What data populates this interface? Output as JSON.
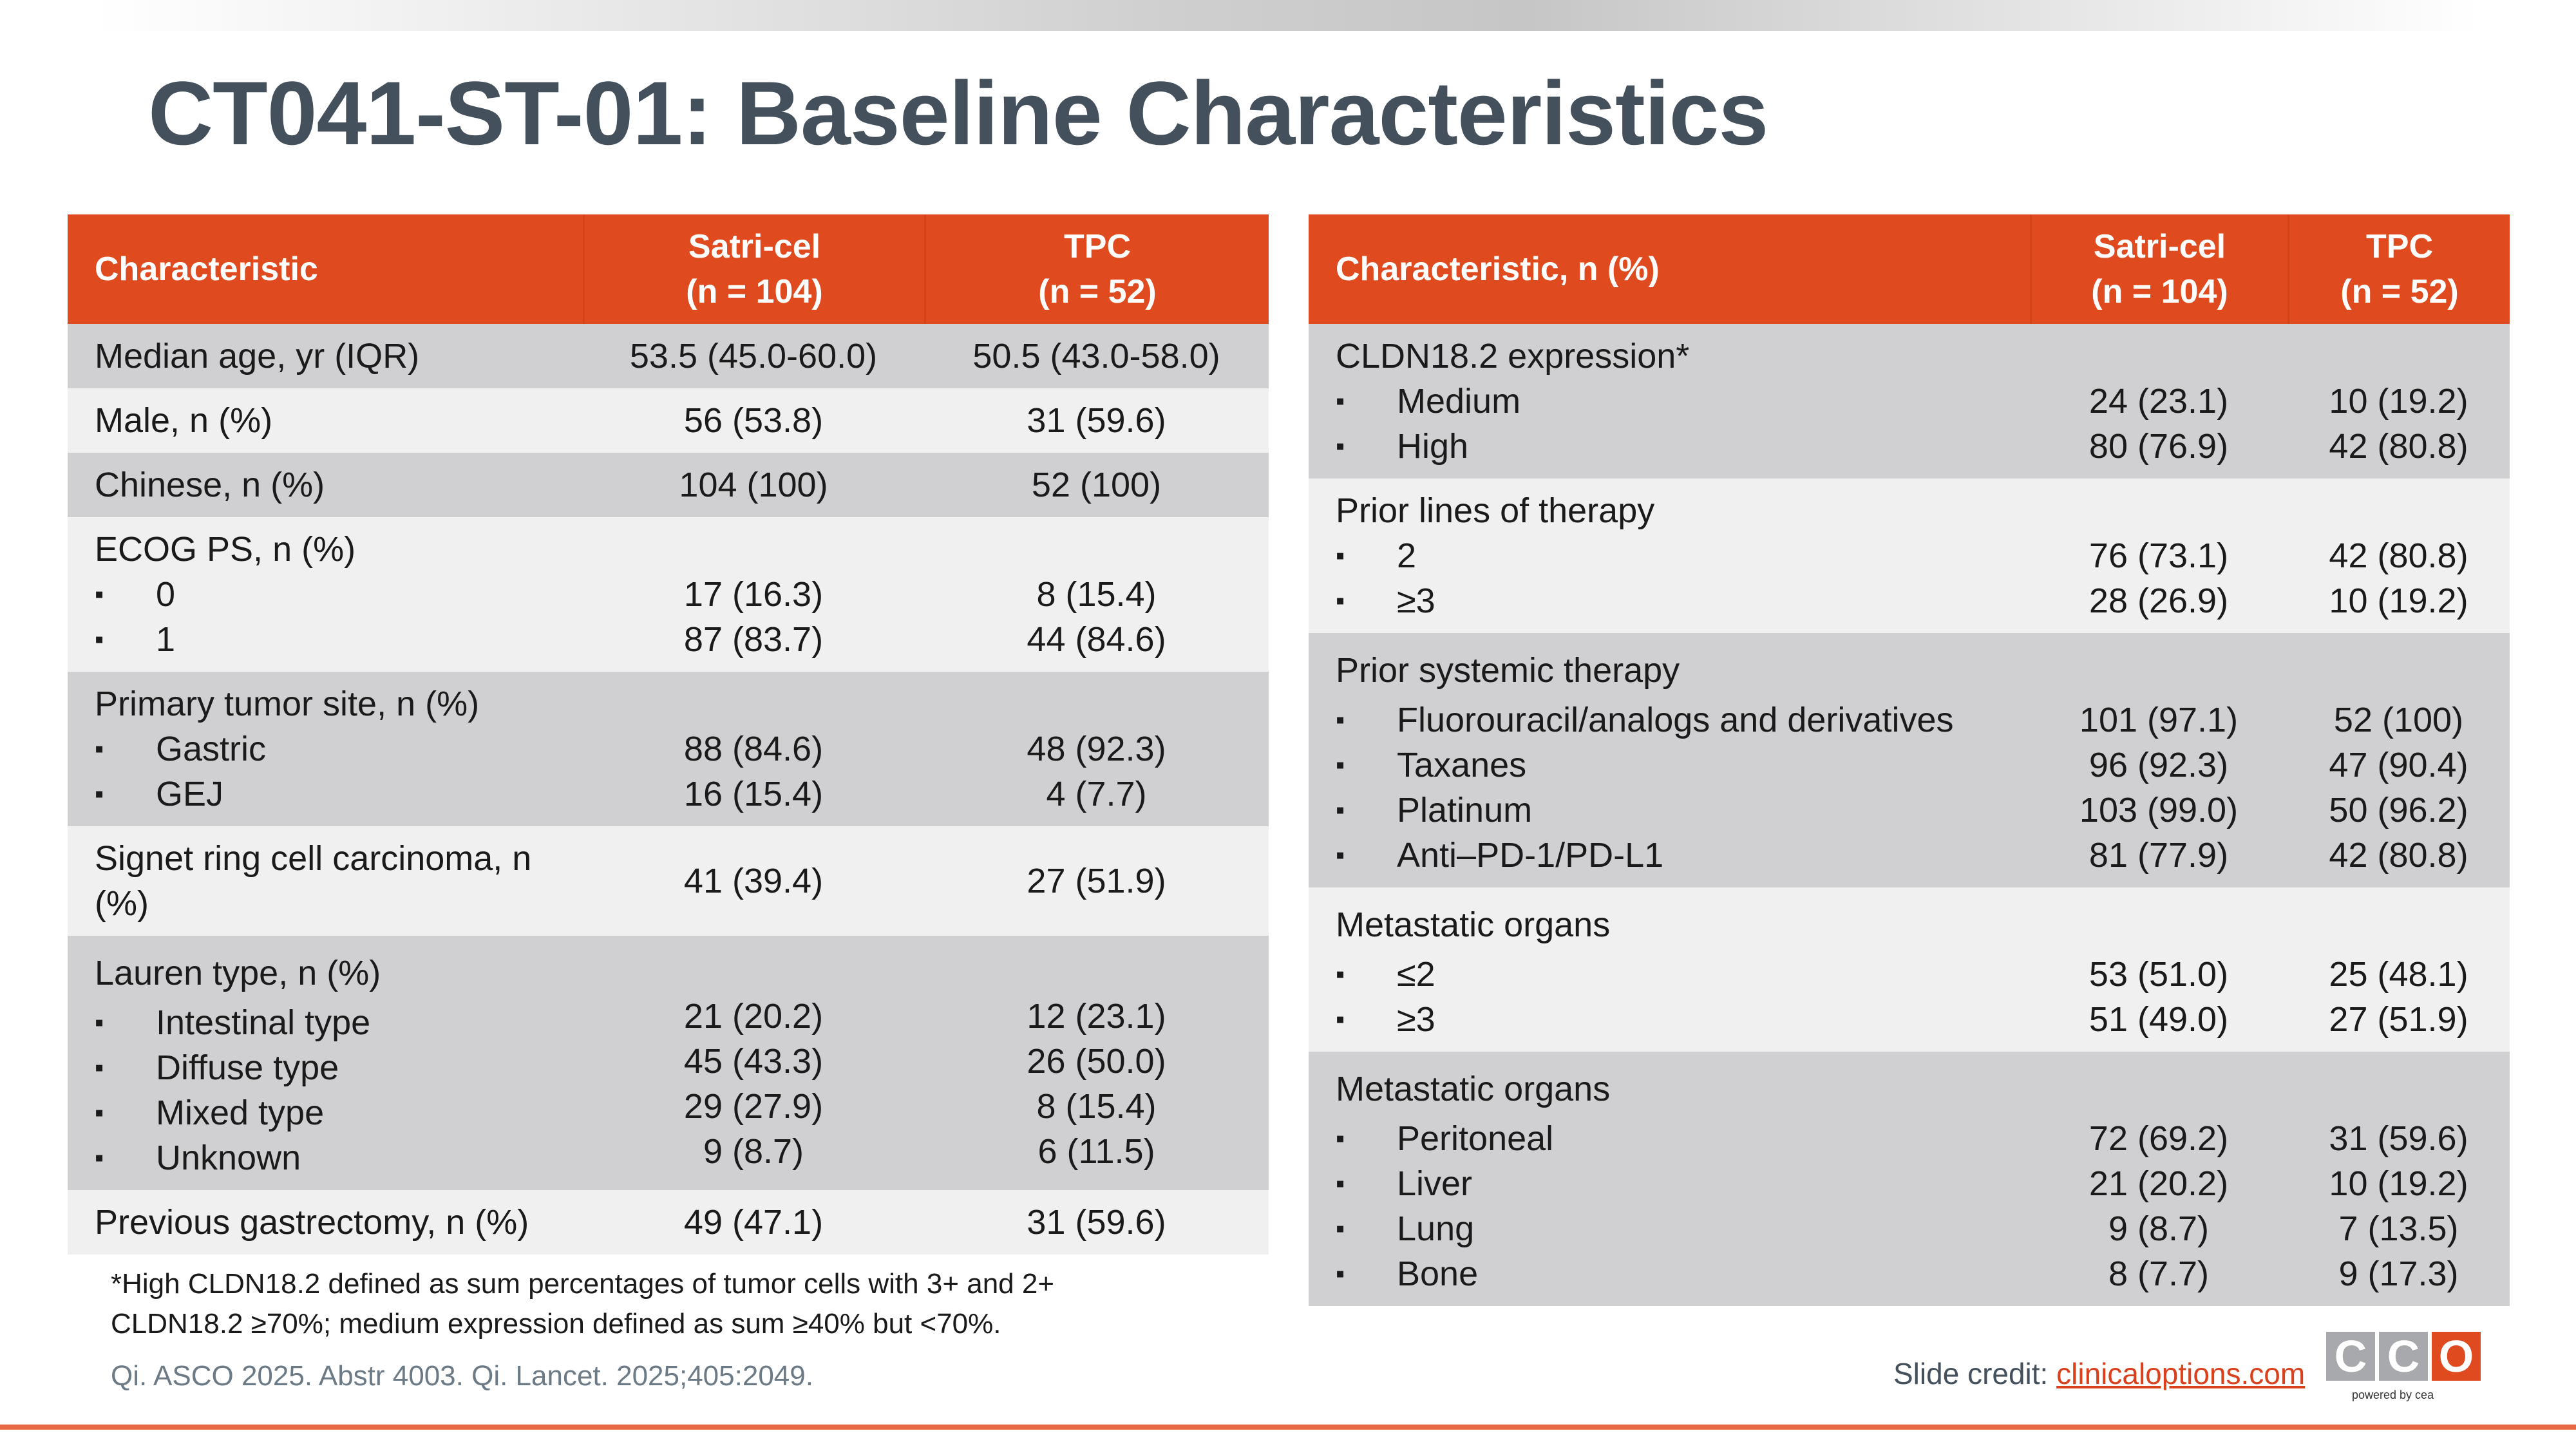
{
  "title": "CT041-ST-01: Baseline Characteristics",
  "left_table": {
    "headers": [
      "Characteristic",
      "Satri-cel\n(n = 104)",
      "TPC\n(n = 52)"
    ],
    "header_lines": {
      "c1": "Characteristic",
      "c2a": "Satri-cel",
      "c2b": "(n = 104)",
      "c3a": "TPC",
      "c3b": "(n = 52)"
    },
    "rows": {
      "age": {
        "label": "Median age, yr (IQR)",
        "satri": "53.5 (45.0-60.0)",
        "tpc": "50.5 (43.0-58.0)"
      },
      "male": {
        "label": "Male, n (%)",
        "satri": "56 (53.8)",
        "tpc": "31 (59.6)"
      },
      "chinese": {
        "label": "Chinese, n (%)",
        "satri": "104 (100)",
        "tpc": "52 (100)"
      },
      "ecog": {
        "label": "ECOG PS, n (%)",
        "items": [
          {
            "label": "0",
            "satri": "17 (16.3)",
            "tpc": "8 (15.4)"
          },
          {
            "label": "1",
            "satri": "87 (83.7)",
            "tpc": "44 (84.6)"
          }
        ]
      },
      "site": {
        "label": "Primary tumor site, n (%)",
        "items": [
          {
            "label": "Gastric",
            "satri": "88 (84.6)",
            "tpc": "48 (92.3)"
          },
          {
            "label": "GEJ",
            "satri": "16 (15.4)",
            "tpc": "4 (7.7)"
          }
        ]
      },
      "signet": {
        "label_a": "Signet ring cell carcinoma, n",
        "label_b": "(%)",
        "satri": "41 (39.4)",
        "tpc": "27 (51.9)"
      },
      "lauren": {
        "label": "Lauren type, n (%)",
        "items": [
          {
            "label": "Intestinal type",
            "satri": "21 (20.2)",
            "tpc": "12 (23.1)"
          },
          {
            "label": "Diffuse type",
            "satri": "45 (43.3)",
            "tpc": "26 (50.0)"
          },
          {
            "label": "Mixed type",
            "satri": "29 (27.9)",
            "tpc": "8 (15.4)"
          },
          {
            "label": "Unknown",
            "satri": "9 (8.7)",
            "tpc": "6 (11.5)"
          }
        ]
      },
      "gastrectomy": {
        "label": "Previous gastrectomy, n (%)",
        "satri": "49 (47.1)",
        "tpc": "31 (59.6)"
      }
    }
  },
  "right_table": {
    "header_lines": {
      "c1": "Characteristic, n (%)",
      "c2a": "Satri-cel",
      "c2b": "(n = 104)",
      "c3a": "TPC",
      "c3b": "(n = 52)"
    },
    "rows": {
      "cldn": {
        "label": "CLDN18.2 expression*",
        "items": [
          {
            "label": "Medium",
            "satri": "24 (23.1)",
            "tpc": "10 (19.2)"
          },
          {
            "label": "High",
            "satri": "80 (76.9)",
            "tpc": "42 (80.8)"
          }
        ]
      },
      "lines": {
        "label": "Prior lines of therapy",
        "items": [
          {
            "label": "2",
            "satri": "76 (73.1)",
            "tpc": "42 (80.8)"
          },
          {
            "label": "≥3",
            "satri": "28 (26.9)",
            "tpc": "10 (19.2)"
          }
        ]
      },
      "systemic": {
        "label": "Prior systemic therapy",
        "items": [
          {
            "label": "Fluorouracil/analogs and derivatives",
            "satri": "101 (97.1)",
            "tpc": "52 (100)"
          },
          {
            "label": "Taxanes",
            "satri": "96 (92.3)",
            "tpc": "47 (90.4)"
          },
          {
            "label": "Platinum",
            "satri": "103 (99.0)",
            "tpc": "50 (96.2)"
          },
          {
            "label": "Anti–PD-1/PD-L1",
            "satri": "81 (77.9)",
            "tpc": "42 (80.8)"
          }
        ]
      },
      "meta_count": {
        "label": "Metastatic organs",
        "items": [
          {
            "label": "≤2",
            "satri": "53 (51.0)",
            "tpc": "25 (48.1)"
          },
          {
            "label": "≥3",
            "satri": "51 (49.0)",
            "tpc": "27 (51.9)"
          }
        ]
      },
      "meta_sites": {
        "label": "Metastatic organs",
        "items": [
          {
            "label": "Peritoneal",
            "satri": "72 (69.2)",
            "tpc": "31 (59.6)"
          },
          {
            "label": "Liver",
            "satri": "21 (20.2)",
            "tpc": "10 (19.2)"
          },
          {
            "label": "Lung",
            "satri": "9 (8.7)",
            "tpc": "7 (13.5)"
          },
          {
            "label": "Bone",
            "satri": "8 (7.7)",
            "tpc": "9 (17.3)"
          }
        ]
      }
    }
  },
  "bullet": "▪",
  "footnote": {
    "line1": "*High CLDN18.2 defined as sum percentages of tumor cells with 3+ and 2+",
    "line2": "CLDN18.2 ≥70%; medium expression defined as sum ≥40% but <70%."
  },
  "source": "Qi. ASCO 2025. Abstr 4003. Qi. Lancet. 2025;405:2049.",
  "credit": {
    "label": "Slide credit: ",
    "link": "clinicaloptions.com"
  },
  "logo": {
    "letters": [
      "C",
      "C",
      "O"
    ],
    "colors": [
      "#a7a9ac",
      "#a7a9ac",
      "#e04a1f"
    ],
    "powered": "powered by cea"
  }
}
